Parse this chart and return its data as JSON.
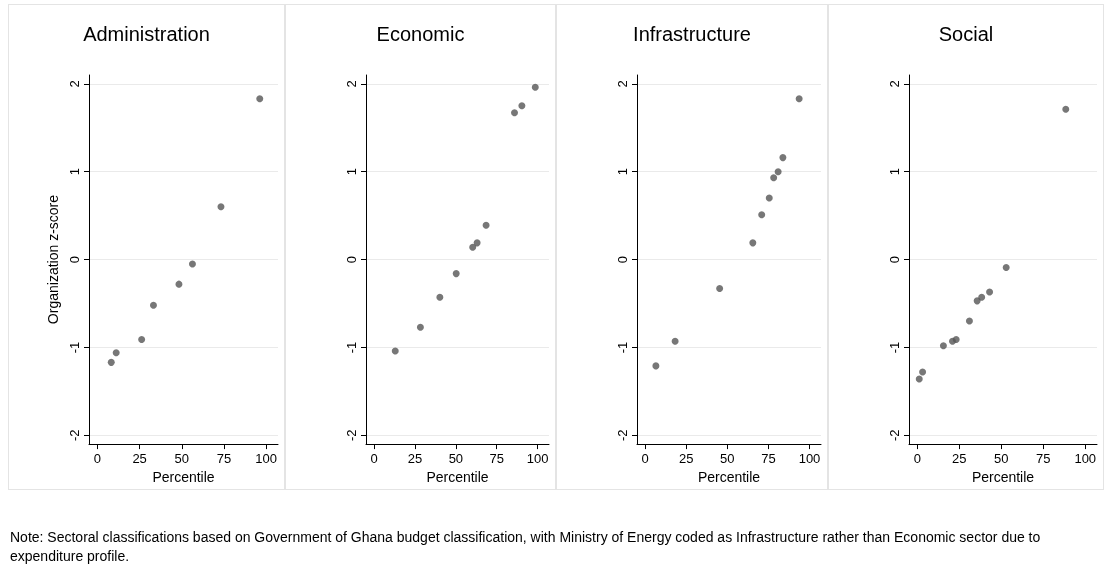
{
  "chart_data": [
    {
      "type": "scatter",
      "title": "Administration",
      "xlabel": "Percentile",
      "ylabel": "Organization z-score",
      "x": [
        8.2,
        11.1,
        26.2,
        33.2,
        48.3,
        56.3,
        73.2,
        96.2
      ],
      "values": [
        -1.17,
        -1.06,
        -0.91,
        -0.52,
        -0.28,
        -0.05,
        0.6,
        1.83
      ],
      "color": "#555555",
      "marker": "circle",
      "grid": "y",
      "xlim": [
        -5,
        107
      ],
      "xticks": [
        0,
        25,
        50,
        75,
        100
      ],
      "ylim": [
        -2.1,
        2.1
      ],
      "yticks": [
        -2,
        -1,
        0,
        1,
        2
      ],
      "annotations": [
        "Note: Sectoral classifications based on Government of Ghana budget classification, with Ministry of Energy coded as Infrastructure rather than Economic sector due to expenditure profile."
      ]
    },
    {
      "type": "scatter",
      "title": "Economic",
      "xlabel": "Percentile",
      "x": [
        12.9,
        28.3,
        40.2,
        50.2,
        60.3,
        63.0,
        68.5,
        85.9,
        90.4,
        98.6
      ],
      "values": [
        -1.04,
        -0.77,
        -0.43,
        -0.16,
        0.14,
        0.19,
        0.39,
        1.67,
        1.75,
        1.96
      ],
      "color": "#555555",
      "marker": "circle",
      "grid": "y",
      "xlim": [
        -5,
        107
      ],
      "xticks": [
        0,
        25,
        50,
        75,
        100
      ],
      "ylim": [
        -2.1,
        2.1
      ],
      "yticks": [
        -2,
        -1,
        0,
        1,
        2
      ]
    },
    {
      "type": "scatter",
      "title": "Infrastructure",
      "xlabel": "Percentile",
      "x": [
        6.5,
        18.2,
        45.3,
        65.5,
        70.9,
        75.5,
        78.2,
        80.9,
        83.8,
        93.7
      ],
      "values": [
        -1.21,
        -0.93,
        -0.33,
        0.19,
        0.51,
        0.7,
        0.93,
        1.0,
        1.16,
        1.83
      ],
      "color": "#555555",
      "marker": "circle",
      "grid": "y",
      "xlim": [
        -5,
        107
      ],
      "xticks": [
        0,
        25,
        50,
        75,
        100
      ],
      "ylim": [
        -2.1,
        2.1
      ],
      "yticks": [
        -2,
        -1,
        0,
        1,
        2
      ]
    },
    {
      "type": "scatter",
      "title": "Social",
      "xlabel": "Percentile",
      "x": [
        1.1,
        3.1,
        15.5,
        20.9,
        23.1,
        31.0,
        35.6,
        38.3,
        43.0,
        52.9,
        88.4
      ],
      "values": [
        -1.36,
        -1.28,
        -0.98,
        -0.93,
        -0.91,
        -0.7,
        -0.47,
        -0.43,
        -0.37,
        -0.09,
        1.71
      ],
      "color": "#555555",
      "marker": "circle",
      "grid": "y",
      "xlim": [
        -5,
        107
      ],
      "xticks": [
        0,
        25,
        50,
        75,
        100
      ],
      "ylim": [
        -2.1,
        2.1
      ],
      "yticks": [
        -2,
        -1,
        0,
        1,
        2
      ]
    }
  ]
}
